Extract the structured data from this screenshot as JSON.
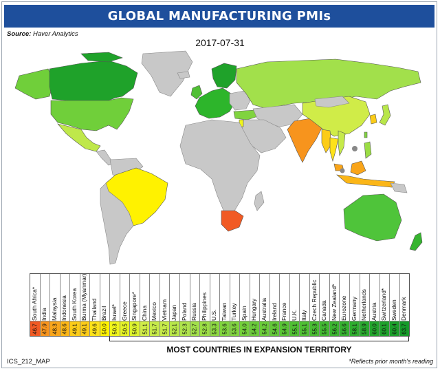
{
  "header": {
    "title": "GLOBAL MANUFACTURING PMIs"
  },
  "source": {
    "label": "Source:",
    "text": "Haver Analytics"
  },
  "date": "2017-07-31",
  "map": {
    "ocean_color": "#ffffff",
    "no_data_color": "#c8c8c8",
    "regions": [
      {
        "name": "Canada",
        "value": null,
        "color": "#1fa22a"
      },
      {
        "name": "U.S.",
        "value": 53.3,
        "color": "#70cf3a"
      },
      {
        "name": "Mexico",
        "value": 51.7,
        "color": "#bfe84a"
      },
      {
        "name": "Brazil",
        "value": 50.0,
        "color": "#fff200"
      },
      {
        "name": "Western Europe",
        "value": null,
        "color": "#2db52b"
      },
      {
        "name": "Russia",
        "value": 52.7,
        "color": "#a2e04b"
      },
      {
        "name": "China",
        "value": 51.1,
        "color": "#d0ec48"
      },
      {
        "name": "India",
        "value": 47.9,
        "color": "#f7941d"
      },
      {
        "name": "South Africa",
        "value": 46.7,
        "color": "#f15a24"
      },
      {
        "name": "Australia",
        "value": 54.2,
        "color": "#4fc43a"
      },
      {
        "name": "New Zealand",
        "value": 56.2,
        "color": "#36b42f"
      }
    ]
  },
  "table": {
    "rows": [
      {
        "country": "South Africa*",
        "value": "46.7",
        "color": "#f15a24"
      },
      {
        "country": "India",
        "value": "47.9",
        "color": "#f7941d"
      },
      {
        "country": "Malaysia",
        "value": "48.3",
        "color": "#f9a51a"
      },
      {
        "country": "Indonesia",
        "value": "48.6",
        "color": "#fbb617"
      },
      {
        "country": "South Korea",
        "value": "49.1",
        "color": "#fccc18"
      },
      {
        "country": "Burma (Myanmar)",
        "value": "49.1",
        "color": "#fccc18"
      },
      {
        "country": "Thailand",
        "value": "49.6",
        "color": "#fde21a"
      },
      {
        "country": "Brazil",
        "value": "50.0",
        "color": "#fff200"
      },
      {
        "country": "Israel*",
        "value": "50.3",
        "color": "#f0f51c"
      },
      {
        "country": "Greece",
        "value": "50.5",
        "color": "#e6f426"
      },
      {
        "country": "Singapore*",
        "value": "50.9",
        "color": "#dcf230"
      },
      {
        "country": "China",
        "value": "51.1",
        "color": "#d0ec48"
      },
      {
        "country": "Mexico",
        "value": "51.7",
        "color": "#c6ea4a"
      },
      {
        "country": "Vietnam",
        "value": "51.7",
        "color": "#c6ea4a"
      },
      {
        "country": "Japan",
        "value": "52.1",
        "color": "#b8e64a"
      },
      {
        "country": "Poland",
        "value": "52.3",
        "color": "#aee34b"
      },
      {
        "country": "Russia",
        "value": "52.7",
        "color": "#a2e04b"
      },
      {
        "country": "Philippines",
        "value": "52.8",
        "color": "#9bdd45"
      },
      {
        "country": "U.S.",
        "value": "53.3",
        "color": "#8cd741"
      },
      {
        "country": "Taiwan",
        "value": "53.6",
        "color": "#80d33f"
      },
      {
        "country": "Turkey",
        "value": "53.6",
        "color": "#80d33f"
      },
      {
        "country": "Spain",
        "value": "54.0",
        "color": "#74cf3c"
      },
      {
        "country": "Hungary",
        "value": "54.2",
        "color": "#6bcb3a"
      },
      {
        "country": "Australia",
        "value": "54.2",
        "color": "#6bcb3a"
      },
      {
        "country": "Ireland",
        "value": "54.6",
        "color": "#62c738"
      },
      {
        "country": "France",
        "value": "54.9",
        "color": "#59c336"
      },
      {
        "country": "U.K.",
        "value": "55.1",
        "color": "#50bf34"
      },
      {
        "country": "Italy",
        "value": "55.1",
        "color": "#50bf34"
      },
      {
        "country": "Czech Republic",
        "value": "55.3",
        "color": "#49bb33"
      },
      {
        "country": "Canada",
        "value": "55.5",
        "color": "#43b832"
      },
      {
        "country": "New Zealand*",
        "value": "56.2",
        "color": "#3cb431"
      },
      {
        "country": "Eurozone",
        "value": "56.6",
        "color": "#36b130"
      },
      {
        "country": "Germany",
        "value": "58.1",
        "color": "#2fad2f"
      },
      {
        "country": "Netherlands",
        "value": "58.9",
        "color": "#29a92e"
      },
      {
        "country": "Austria",
        "value": "60.0",
        "color": "#23a52d"
      },
      {
        "country": "Switzerland*",
        "value": "60.1",
        "color": "#1fa22c"
      },
      {
        "country": "Sweden",
        "value": "60.4",
        "color": "#1c9f2b"
      },
      {
        "country": "Denmark",
        "value": "63.7",
        "color": "#169a29"
      }
    ]
  },
  "footer": {
    "expansion_label": "MOST COUNTRIES IN EXPANSION TERRITORY",
    "code": "ICS_212_MAP",
    "note": "*Reflects prior month's reading"
  }
}
